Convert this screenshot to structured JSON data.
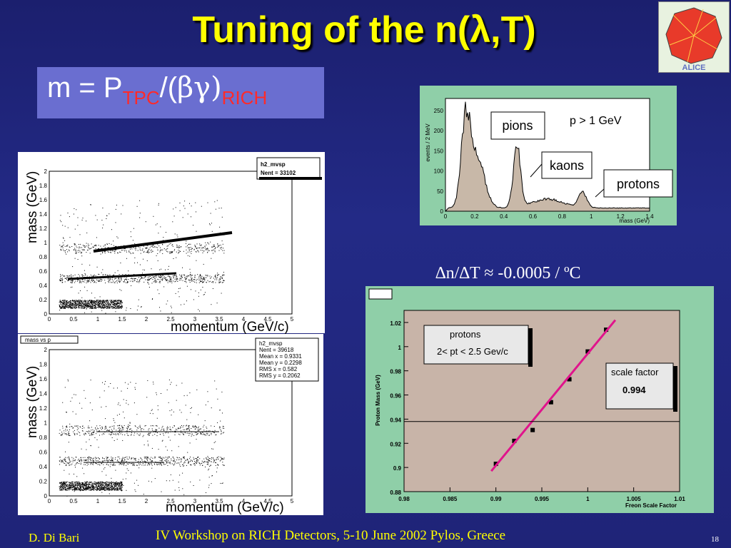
{
  "slide": {
    "title": "Tuning of the n(λ,T)",
    "formula": {
      "m": "m = P",
      "tpc": "TPC",
      "slash": "/(",
      "bg": "βγ)",
      "rich": "RICH"
    },
    "relation": "∆n/∆T ≈ -0.0005 / ºC",
    "footer_left": "D. Di Bari",
    "footer_center": "IV Workshop on RICH Detectors, 5-10 June 2002 Pylos, Greece",
    "page_number": "18",
    "logo_text": "ALICE"
  },
  "scatter_top": {
    "stats_title": "h2_mvsp",
    "stats_entries": "Nent = 33102",
    "ylabel": "mass (GeV)",
    "xlabel": "momentum (GeV/c)",
    "xticks": [
      "0",
      "0.5",
      "1",
      "1.5",
      "2",
      "2.5",
      "3",
      "3.5",
      "4",
      "4.5",
      "5"
    ],
    "yticks": [
      "0",
      "0.2",
      "0.4",
      "0.6",
      "0.8",
      "1",
      "1.2",
      "1.4",
      "1.6",
      "1.8",
      "2"
    ]
  },
  "scatter_bottom": {
    "tag": "mass vs p",
    "stats": [
      "h2_mvsp",
      "Nent = 39618",
      "Mean x = 0.9331",
      "Mean y = 0.2298",
      "RMS x = 0.582",
      "RMS y = 0.2062"
    ],
    "ylabel": "mass (GeV)",
    "xlabel": "momentum (GeV/c)",
    "xticks": [
      "0",
      "0.5",
      "1",
      "1.5",
      "2",
      "2.5",
      "3",
      "3.5",
      "4",
      "4.5",
      "5"
    ],
    "yticks": [
      "0",
      "0.2",
      "0.4",
      "0.6",
      "0.8",
      "1",
      "1.2",
      "1.4",
      "1.6",
      "1.8",
      "2"
    ]
  },
  "mass_hist": {
    "ylabel": "events / 2 MeV",
    "xlabel": "mass (GeV)",
    "momentum_cut": "p > 1 GeV",
    "labels": {
      "pions": "pions",
      "kaons": "kaons",
      "protons": "protons"
    },
    "xticks": [
      "0",
      "0.2",
      "0.4",
      "0.6",
      "0.8",
      "1",
      "1.2",
      "1.4"
    ],
    "yticks": [
      "0",
      "50",
      "100",
      "150",
      "200",
      "250"
    ]
  },
  "chart_data": {
    "type": "scatter",
    "xlabel": "Freon Scale Factor",
    "ylabel": "Proton Mass (GeV)",
    "xlim": [
      0.98,
      1.01
    ],
    "ylim": [
      0.88,
      1.03
    ],
    "xticks": [
      "0.98",
      "0.985",
      "0.99",
      "0.995",
      "1",
      "1.005",
      "1.01"
    ],
    "yticks": [
      "0.88",
      "0.9",
      "0.92",
      "0.94",
      "0.96",
      "0.98",
      "1",
      "1.02"
    ],
    "points": [
      {
        "x": 0.99,
        "y": 0.903
      },
      {
        "x": 0.992,
        "y": 0.922
      },
      {
        "x": 0.994,
        "y": 0.931
      },
      {
        "x": 0.996,
        "y": 0.954
      },
      {
        "x": 0.998,
        "y": 0.973
      },
      {
        "x": 1.0,
        "y": 0.996
      },
      {
        "x": 1.002,
        "y": 1.014
      }
    ],
    "fit": {
      "x1": 0.9895,
      "y1": 0.897,
      "x2": 1.003,
      "y2": 1.022
    },
    "reference_y": 0.938,
    "box1": {
      "line1": "protons",
      "line2": "2< pt < 2.5 Gev/c"
    },
    "box2": {
      "line1": "scale factor",
      "line2": "0.994"
    },
    "colors": {
      "fit": "#e0148c",
      "panel": "#8fcfa8",
      "plot": "#c8b4a8"
    }
  }
}
